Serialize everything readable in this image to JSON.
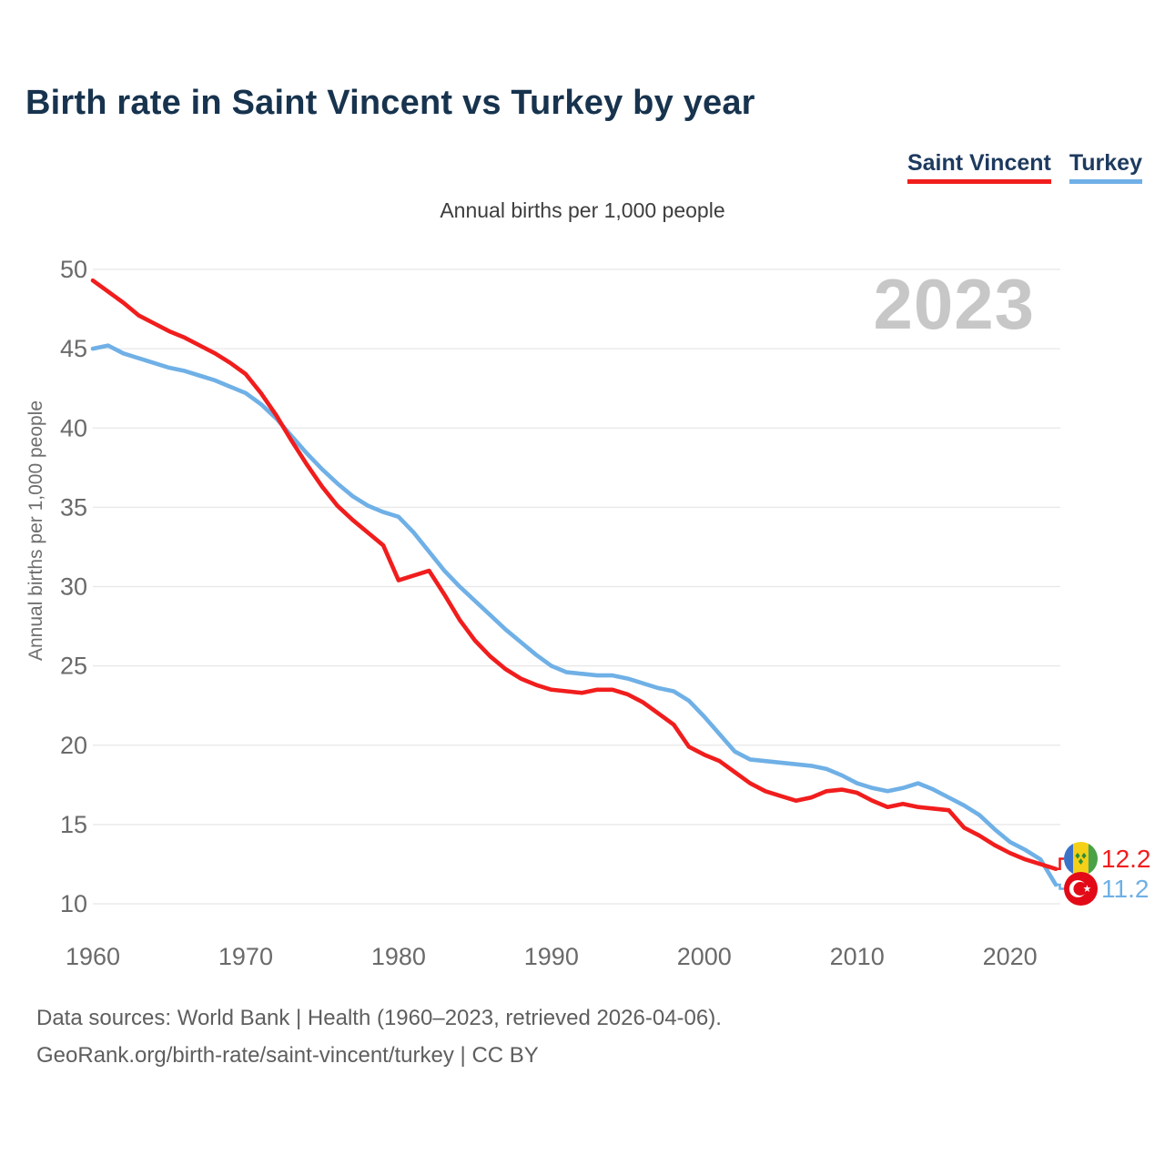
{
  "header": {
    "title": "Birth rate in Saint Vincent vs Turkey by year",
    "subtitle": "Annual births per 1,000 people",
    "legend": [
      {
        "label": "Saint Vincent",
        "color": "#f11d1d"
      },
      {
        "label": "Turkey",
        "color": "#6fb0e6"
      }
    ]
  },
  "watermark": "2023",
  "end_labels": [
    {
      "series": "Saint Vincent",
      "flag": "saint-vincent",
      "value": "12.2"
    },
    {
      "series": "Turkey",
      "flag": "turkey",
      "value": "11.2"
    }
  ],
  "footer": {
    "line1": "Data sources: World Bank | Health (1960–2023, retrieved 2026-04-06).",
    "line2": "GeoRank.org/birth-rate/saint-vincent/turkey | CC BY"
  },
  "chart_data": {
    "type": "line",
    "title": "Birth rate in Saint Vincent vs Turkey by year",
    "xlabel": "",
    "ylabel": "Annual births per 1,000 people",
    "ylim": [
      10,
      50
    ],
    "yticks": [
      10,
      15,
      20,
      25,
      30,
      35,
      40,
      45,
      50
    ],
    "xticks": [
      1960,
      1970,
      1980,
      1990,
      2000,
      2010,
      2020
    ],
    "grid": true,
    "legend_position": "top-right",
    "x": [
      1960,
      1961,
      1962,
      1963,
      1964,
      1965,
      1966,
      1967,
      1968,
      1969,
      1970,
      1971,
      1972,
      1973,
      1974,
      1975,
      1976,
      1977,
      1978,
      1979,
      1980,
      1981,
      1982,
      1983,
      1984,
      1985,
      1986,
      1987,
      1988,
      1989,
      1990,
      1991,
      1992,
      1993,
      1994,
      1995,
      1996,
      1997,
      1998,
      1999,
      2000,
      2001,
      2002,
      2003,
      2004,
      2005,
      2006,
      2007,
      2008,
      2009,
      2010,
      2011,
      2012,
      2013,
      2014,
      2015,
      2016,
      2017,
      2018,
      2019,
      2020,
      2021,
      2022,
      2023
    ],
    "series": [
      {
        "name": "Saint Vincent",
        "color": "#f11d1d",
        "values": [
          49.3,
          48.6,
          47.9,
          47.1,
          46.6,
          46.1,
          45.7,
          45.2,
          44.7,
          44.1,
          43.4,
          42.2,
          40.8,
          39.2,
          37.7,
          36.3,
          35.1,
          34.2,
          33.4,
          32.6,
          30.4,
          30.7,
          31.0,
          29.5,
          27.9,
          26.6,
          25.6,
          24.8,
          24.2,
          23.8,
          23.5,
          23.4,
          23.3,
          23.5,
          23.5,
          23.2,
          22.7,
          22.0,
          21.3,
          19.9,
          19.4,
          19.0,
          18.3,
          17.6,
          17.1,
          16.8,
          16.5,
          16.7,
          17.1,
          17.2,
          17.0,
          16.5,
          16.1,
          16.3,
          16.1,
          16.0,
          15.9,
          14.8,
          14.3,
          13.7,
          13.2,
          12.8,
          12.5,
          12.2
        ]
      },
      {
        "name": "Turkey",
        "color": "#6fb0e6",
        "values": [
          45.0,
          45.2,
          44.7,
          44.4,
          44.1,
          43.8,
          43.6,
          43.3,
          43.0,
          42.6,
          42.2,
          41.5,
          40.6,
          39.5,
          38.4,
          37.4,
          36.5,
          35.7,
          35.1,
          34.7,
          34.4,
          33.4,
          32.2,
          31.0,
          30.0,
          29.1,
          28.2,
          27.3,
          26.5,
          25.7,
          25.0,
          24.6,
          24.5,
          24.4,
          24.4,
          24.2,
          23.9,
          23.6,
          23.4,
          22.8,
          21.8,
          20.7,
          19.6,
          19.1,
          19.0,
          18.9,
          18.8,
          18.7,
          18.5,
          18.1,
          17.6,
          17.3,
          17.1,
          17.3,
          17.6,
          17.2,
          16.7,
          16.2,
          15.6,
          14.7,
          13.9,
          13.4,
          12.8,
          11.2
        ]
      }
    ]
  }
}
